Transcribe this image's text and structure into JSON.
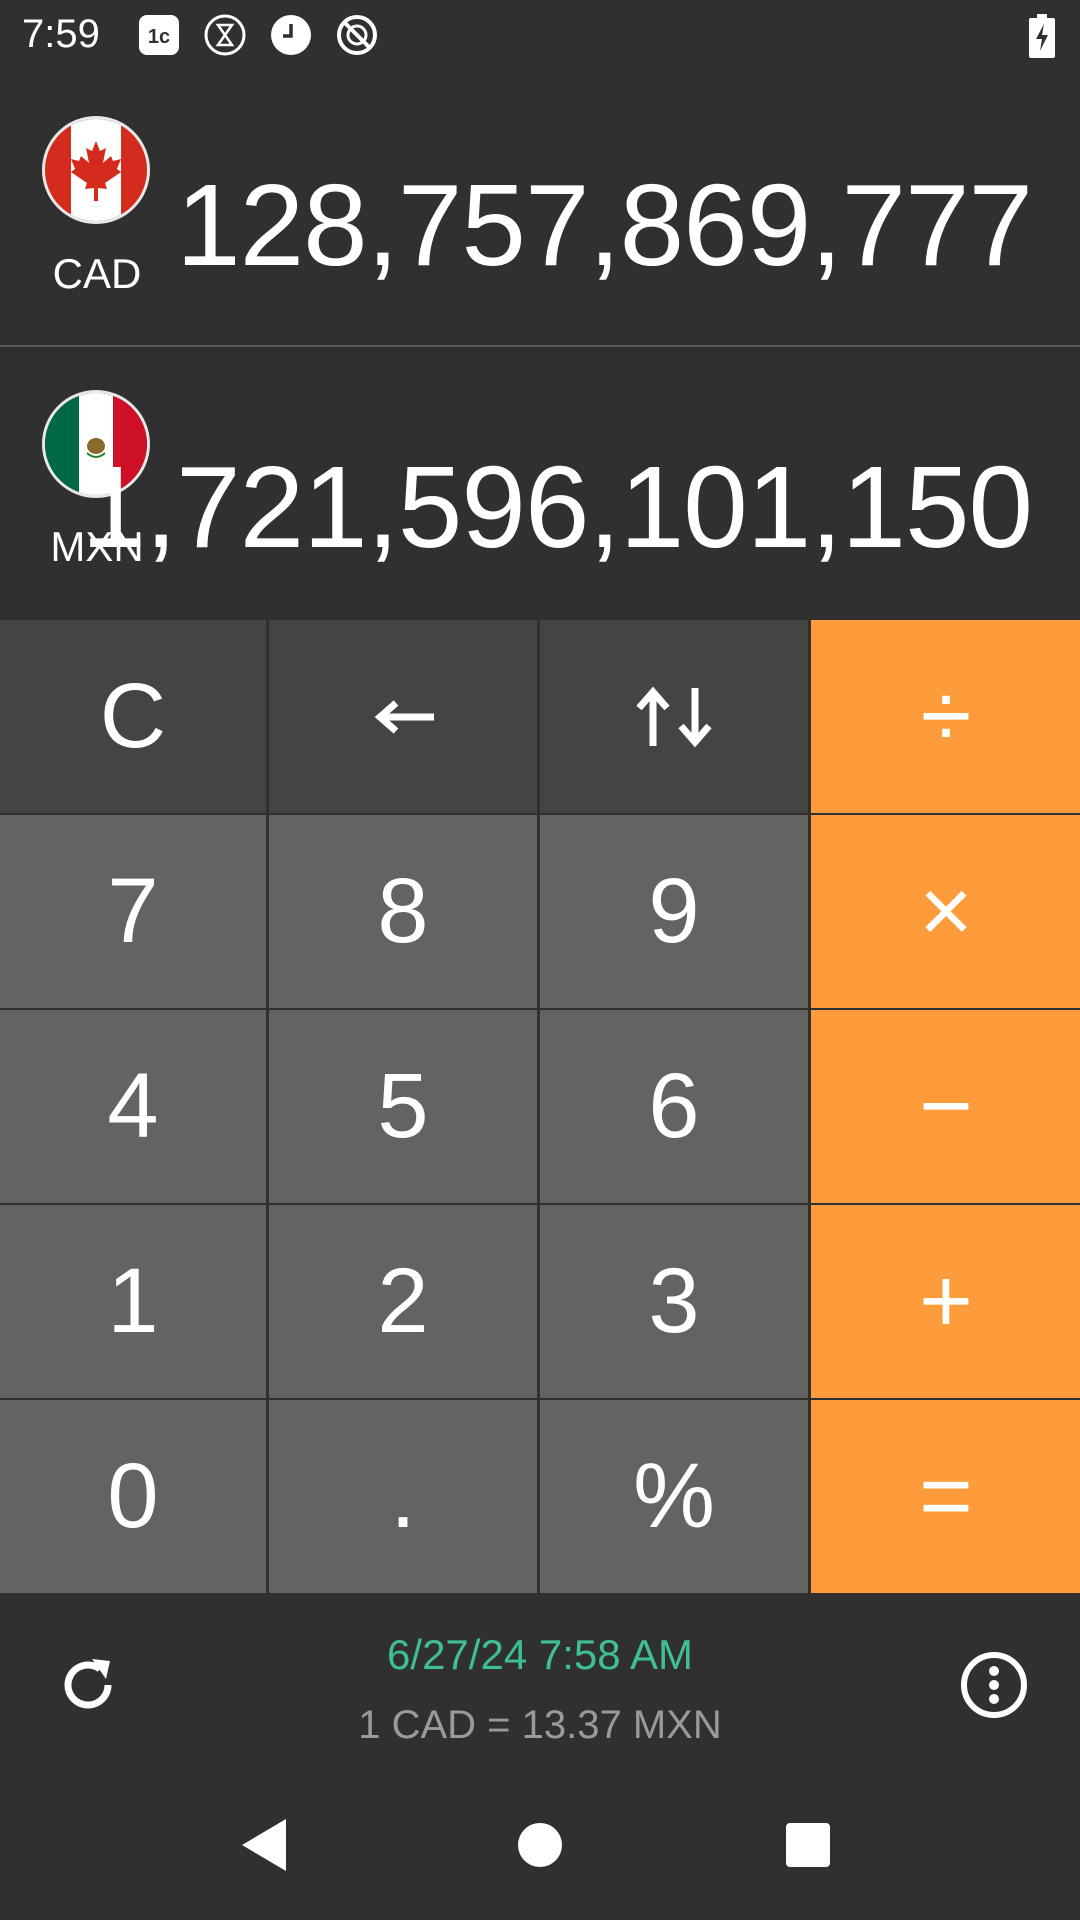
{
  "status_bar": {
    "time": "7:59",
    "icons": [
      "1c-app-icon",
      "hourglass-icon",
      "clock-icon",
      "do-not-disturb-icon"
    ],
    "battery": "battery-charging-icon"
  },
  "from_currency": {
    "code": "CAD",
    "amount": "128,757,869,777",
    "flag": "canada-flag-icon"
  },
  "to_currency": {
    "code": "MXN",
    "amount": "1,721,596,101,150",
    "flag": "mexico-flag-icon"
  },
  "keypad": {
    "clear": "C",
    "backspace": "←",
    "swap": "⇅",
    "divide": "÷",
    "multiply": "×",
    "subtract": "−",
    "add": "+",
    "equals": "=",
    "percent": "%",
    "decimal": ".",
    "digits": [
      "0",
      "1",
      "2",
      "3",
      "4",
      "5",
      "6",
      "7",
      "8",
      "9"
    ]
  },
  "info": {
    "updated": "6/27/24 7:58 AM",
    "rate": "1 CAD = 13.37 MXN"
  },
  "colors": {
    "background": "#303030",
    "top_keys": "#444444",
    "number_keys": "#636363",
    "operator_keys": "#fe9c3b",
    "timestamp": "#3fbf94",
    "rate_text": "#9a9a9a"
  }
}
